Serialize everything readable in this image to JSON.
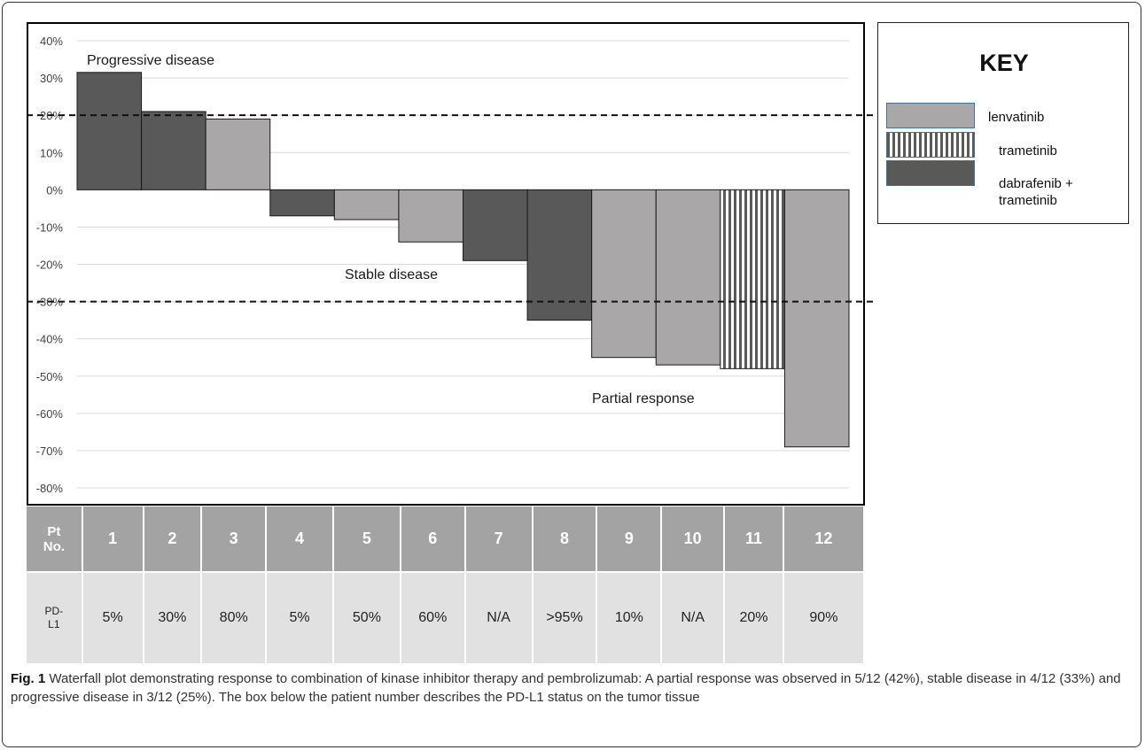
{
  "chart_data": {
    "type": "bar",
    "categories": [
      "1",
      "2",
      "3",
      "4",
      "5",
      "6",
      "7",
      "8",
      "9",
      "10",
      "11",
      "12"
    ],
    "values": [
      31.5,
      21,
      19,
      -7,
      -8,
      -14,
      -19,
      -35,
      -45,
      -47,
      -48,
      -69
    ],
    "treatments": [
      "dabrafenib + trametinib",
      "dabrafenib + trametinib",
      "lenvatinib",
      "dabrafenib + trametinib",
      "lenvatinib",
      "lenvatinib",
      "dabrafenib + trametinib",
      "dabrafenib + trametinib",
      "lenvatinib",
      "lenvatinib",
      "trametinib",
      "lenvatinib"
    ],
    "ylim": [
      -80,
      40
    ],
    "yticks": [
      "40%",
      "30%",
      "20%",
      "10%",
      "0%",
      "-10%",
      "-20%",
      "-30%",
      "-40%",
      "-50%",
      "-60%",
      "-70%",
      "-80%"
    ],
    "reference_lines": [
      20,
      -30
    ],
    "grid": true,
    "annotations": [
      "Progressive disease",
      "Stable disease",
      "Partial response"
    ]
  },
  "colors": {
    "lenvatinib": "#a9a7a8",
    "trametinib_stripe": "#5a5a5a",
    "dabrafenib_trametinib": "#595959"
  },
  "key": {
    "title": "KEY",
    "items": [
      {
        "label": "lenvatinib"
      },
      {
        "label": "trametinib"
      },
      {
        "label": "dabrafenib +"
      }
    ],
    "extra_label": "trametinib"
  },
  "table": {
    "pt_header": [
      "Pt",
      "No."
    ],
    "pdl_header": [
      "PD-",
      "L1"
    ],
    "patients": [
      "1",
      "2",
      "3",
      "4",
      "5",
      "6",
      "7",
      "8",
      "9",
      "10",
      "11",
      "12"
    ],
    "pdl1": [
      "5%",
      "30%",
      "80%",
      "5%",
      "50%",
      "60%",
      "N/A",
      ">95%",
      "10%",
      "N/A",
      "20%",
      "90%"
    ]
  },
  "caption": {
    "label": "Fig. 1",
    "text": " Waterfall plot demonstrating response to combination of kinase inhibitor therapy and pembrolizumab: A partial response was observed in 5/12 (42%), stable disease in 4/12 (33%) and progressive disease in 3/12 (25%). The box below the patient number describes the PD-L1 status on the tumor tissue"
  }
}
